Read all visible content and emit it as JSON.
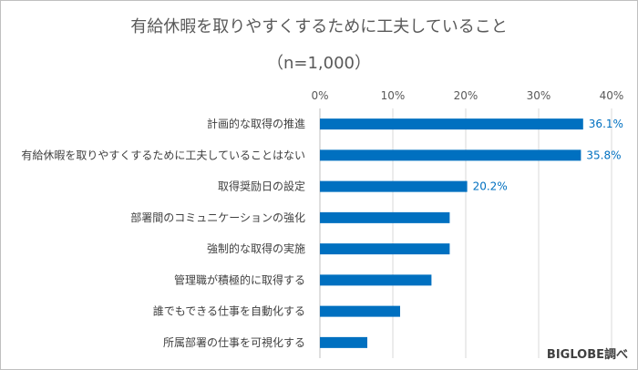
{
  "chart_data": {
    "type": "bar",
    "orientation": "horizontal",
    "title": "有給休暇を取りやすくするために工夫していること",
    "subtitle": "（n=1,000）",
    "categories": [
      "計画的な取得の推進",
      "有給休暇を取りやすくするために工夫していることはない",
      "取得奨励日の設定",
      "部署間のコミュニケーションの強化",
      "強制的な取得の実施",
      "管理職が積極的に取得する",
      "誰でもできる仕事を自動化する",
      "所属部署の仕事を可視化する"
    ],
    "values": [
      36.1,
      35.8,
      20.2,
      17.8,
      17.8,
      15.3,
      11.0,
      6.5
    ],
    "data_labels": [
      "36.1%",
      "35.8%",
      "20.2%",
      null,
      null,
      null,
      null,
      null
    ],
    "xlim": [
      0,
      40
    ],
    "x_ticks": [
      0,
      10,
      20,
      30,
      40
    ],
    "x_tick_labels": [
      "0%",
      "10%",
      "20%",
      "30%",
      "40%"
    ],
    "x_axis_position": "top",
    "grid": true,
    "legend": "none",
    "bar_color": "#0070c0",
    "label_color": "#0070c0"
  },
  "source_note": "BIGLOBE調べ"
}
